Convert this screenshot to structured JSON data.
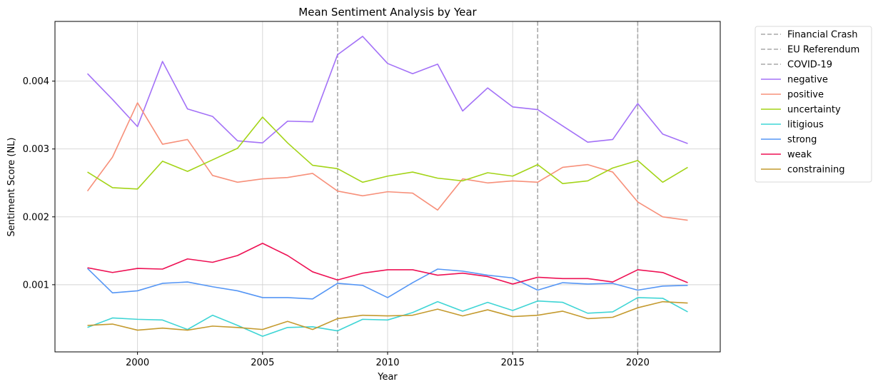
{
  "chart_data": {
    "type": "line",
    "title": "Mean Sentiment Analysis by Year",
    "xlabel": "Year",
    "ylabel": "Sentiment Score (NL)",
    "xlim": [
      1996.7,
      2023.3
    ],
    "ylim": [
      1e-05,
      0.00488
    ],
    "x_ticks": [
      2000,
      2005,
      2010,
      2015,
      2020
    ],
    "y_ticks": [
      0.001,
      0.002,
      0.003,
      0.004
    ],
    "y_tick_labels": [
      "0.001",
      "0.002",
      "0.003",
      "0.004"
    ],
    "grid": true,
    "legend_position": "outside-right-top",
    "x": [
      1998,
      1999,
      2000,
      2001,
      2002,
      2003,
      2004,
      2005,
      2006,
      2007,
      2008,
      2009,
      2010,
      2011,
      2012,
      2013,
      2014,
      2015,
      2016,
      2017,
      2018,
      2019,
      2020,
      2021,
      2022
    ],
    "events": [
      {
        "name": "Financial Crash",
        "year": 2008,
        "color": "#a9a9a9"
      },
      {
        "name": "EU Referendum",
        "year": 2016,
        "color": "#a9a9a9"
      },
      {
        "name": "COVID-19",
        "year": 2020,
        "color": "#a9a9a9"
      }
    ],
    "series": [
      {
        "name": "negative",
        "color": "#a371f7",
        "values": [
          0.00411,
          0.00373,
          0.00333,
          0.00429,
          0.00359,
          0.00348,
          0.00312,
          0.00309,
          0.00341,
          0.0034,
          0.00439,
          0.00466,
          0.00426,
          0.00411,
          0.00425,
          0.00356,
          0.0039,
          0.00362,
          0.00358,
          0.00334,
          0.0031,
          0.00314,
          0.00367,
          0.00322,
          0.00308
        ]
      },
      {
        "name": "positive",
        "color": "#f7907a",
        "values": [
          0.00238,
          0.00288,
          0.00368,
          0.00307,
          0.00314,
          0.00261,
          0.00251,
          0.00256,
          0.00258,
          0.00264,
          0.00238,
          0.00231,
          0.00237,
          0.00235,
          0.0021,
          0.00256,
          0.0025,
          0.00253,
          0.00251,
          0.00273,
          0.00277,
          0.00266,
          0.00222,
          0.002,
          0.00195
        ]
      },
      {
        "name": "uncertainty",
        "color": "#a3d417",
        "values": [
          0.00266,
          0.00243,
          0.00241,
          0.00282,
          0.00267,
          0.00284,
          0.00301,
          0.00347,
          0.00309,
          0.00276,
          0.00271,
          0.00251,
          0.0026,
          0.00266,
          0.00257,
          0.00253,
          0.00265,
          0.0026,
          0.00277,
          0.00249,
          0.00253,
          0.00272,
          0.00283,
          0.00251,
          0.00273
        ]
      },
      {
        "name": "litigious",
        "color": "#3fd5d5",
        "values": [
          0.00037,
          0.00051,
          0.00049,
          0.00048,
          0.00034,
          0.00055,
          0.0004,
          0.00024,
          0.00037,
          0.00038,
          0.00032,
          0.00049,
          0.00048,
          0.00059,
          0.00075,
          0.00061,
          0.00074,
          0.00062,
          0.00076,
          0.00074,
          0.00058,
          0.0006,
          0.00081,
          0.0008,
          0.0006
        ]
      },
      {
        "name": "strong",
        "color": "#5596f5",
        "values": [
          0.00124,
          0.00088,
          0.00091,
          0.00102,
          0.00104,
          0.00097,
          0.00091,
          0.00081,
          0.00081,
          0.00079,
          0.00102,
          0.00099,
          0.00081,
          0.00103,
          0.00123,
          0.0012,
          0.00114,
          0.0011,
          0.00092,
          0.00103,
          0.00101,
          0.00102,
          0.00092,
          0.00098,
          0.00099
        ]
      },
      {
        "name": "weak",
        "color": "#ee1154",
        "values": [
          0.00125,
          0.00118,
          0.00124,
          0.00123,
          0.00138,
          0.00133,
          0.00143,
          0.00161,
          0.00143,
          0.00119,
          0.00107,
          0.00117,
          0.00122,
          0.00122,
          0.00114,
          0.00117,
          0.00112,
          0.00101,
          0.00111,
          0.00109,
          0.00109,
          0.00104,
          0.00122,
          0.00118,
          0.00103
        ]
      },
      {
        "name": "constraining",
        "color": "#c49a2e",
        "values": [
          0.0004,
          0.00042,
          0.00033,
          0.00036,
          0.00033,
          0.00039,
          0.00037,
          0.00034,
          0.00046,
          0.00034,
          0.0005,
          0.00055,
          0.00054,
          0.00055,
          0.00064,
          0.00054,
          0.00063,
          0.00053,
          0.00055,
          0.00061,
          0.0005,
          0.00052,
          0.00066,
          0.00075,
          0.00073
        ]
      }
    ]
  }
}
